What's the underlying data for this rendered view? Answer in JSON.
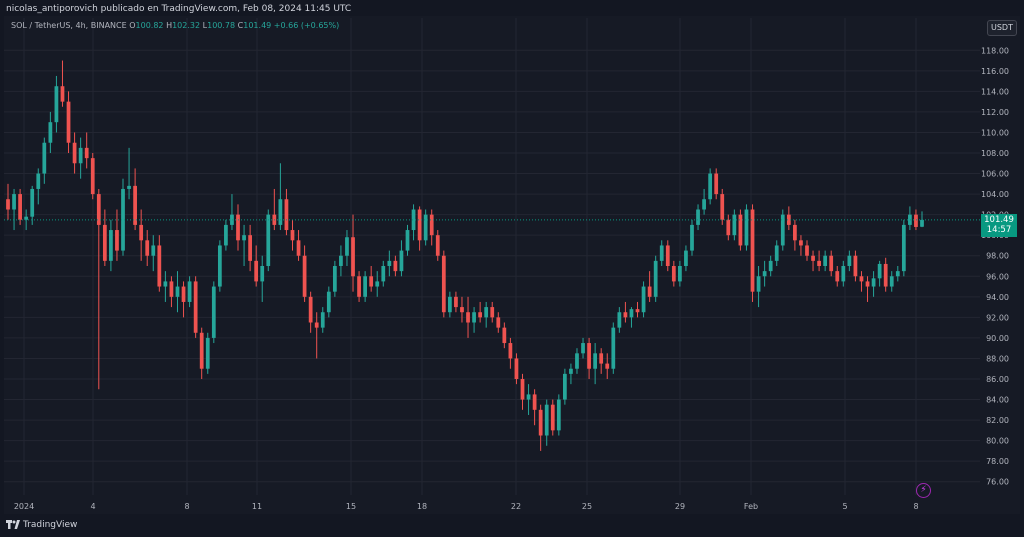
{
  "header": {
    "publisher_line": "nicolas_antiporovich publicado en TradingView.com, Feb 08, 2024 11:45 UTC"
  },
  "legend": {
    "symbol": "SOL / TetherUS, 4h, BINANCE",
    "open_label": "O",
    "open": "100.82",
    "high_label": "H",
    "high": "102.32",
    "low_label": "L",
    "low": "100.78",
    "close_label": "C",
    "close": "101.49",
    "change": "+0.66 (+0.65%)"
  },
  "currency_button": "USDT",
  "price_tag": {
    "price": "101.49",
    "countdown": "14:57"
  },
  "footer": {
    "brand": "TradingView"
  },
  "icons": {
    "flash": "flash-icon",
    "logo": "tradingview-logo-icon"
  },
  "colors": {
    "up": "#26a69a",
    "down": "#ef5350",
    "background": "#161a25",
    "grid": "#232632",
    "price_line": "#089981",
    "flash": "#e040fb"
  },
  "chart_data": {
    "type": "candlestick",
    "symbol": "SOL / TetherUS",
    "interval": "4h",
    "exchange": "BINANCE",
    "ylim": [
      75,
      119
    ],
    "y_ticks": [
      76,
      78,
      80,
      82,
      84,
      86,
      88,
      90,
      92,
      94,
      96,
      98,
      100,
      102,
      104,
      106,
      108,
      110,
      112,
      114,
      116,
      118
    ],
    "x_ticks": [
      "2024",
      "4",
      "8",
      "11",
      "15",
      "18",
      "22",
      "25",
      "29",
      "Feb",
      "5",
      "8"
    ],
    "last_price": 101.49,
    "candles": [
      {
        "o": 103.5,
        "h": 105.0,
        "l": 101.5,
        "c": 102.5
      },
      {
        "o": 102.5,
        "h": 104.5,
        "l": 100.5,
        "c": 104.0
      },
      {
        "o": 104.0,
        "h": 104.5,
        "l": 101.0,
        "c": 101.5
      },
      {
        "o": 101.5,
        "h": 102.5,
        "l": 100.5,
        "c": 101.8
      },
      {
        "o": 101.8,
        "h": 104.8,
        "l": 101.0,
        "c": 104.5
      },
      {
        "o": 104.5,
        "h": 106.5,
        "l": 103.0,
        "c": 106.0
      },
      {
        "o": 106.0,
        "h": 109.5,
        "l": 105.0,
        "c": 109.0
      },
      {
        "o": 109.0,
        "h": 112.0,
        "l": 108.0,
        "c": 111.0
      },
      {
        "o": 111.0,
        "h": 115.5,
        "l": 110.0,
        "c": 114.5
      },
      {
        "o": 114.5,
        "h": 117.0,
        "l": 112.5,
        "c": 113.0
      },
      {
        "o": 113.0,
        "h": 114.0,
        "l": 108.0,
        "c": 109.0
      },
      {
        "o": 109.0,
        "h": 110.0,
        "l": 106.0,
        "c": 107.0
      },
      {
        "o": 107.0,
        "h": 109.5,
        "l": 105.5,
        "c": 108.5
      },
      {
        "o": 108.5,
        "h": 110.0,
        "l": 106.5,
        "c": 107.5
      },
      {
        "o": 107.5,
        "h": 108.0,
        "l": 103.5,
        "c": 104.0
      },
      {
        "o": 104.0,
        "h": 104.5,
        "l": 85.0,
        "c": 101.0
      },
      {
        "o": 101.0,
        "h": 102.5,
        "l": 97.0,
        "c": 97.5
      },
      {
        "o": 97.5,
        "h": 101.5,
        "l": 96.5,
        "c": 100.5
      },
      {
        "o": 100.5,
        "h": 102.5,
        "l": 97.5,
        "c": 98.5
      },
      {
        "o": 98.5,
        "h": 105.5,
        "l": 98.0,
        "c": 104.5
      },
      {
        "o": 104.5,
        "h": 108.5,
        "l": 103.5,
        "c": 104.8
      },
      {
        "o": 104.8,
        "h": 106.5,
        "l": 100.5,
        "c": 101.0
      },
      {
        "o": 101.0,
        "h": 102.5,
        "l": 97.5,
        "c": 99.5
      },
      {
        "o": 99.5,
        "h": 100.5,
        "l": 97.0,
        "c": 98.0
      },
      {
        "o": 98.0,
        "h": 100.0,
        "l": 96.5,
        "c": 99.0
      },
      {
        "o": 99.0,
        "h": 100.0,
        "l": 94.5,
        "c": 95.0
      },
      {
        "o": 95.0,
        "h": 96.5,
        "l": 93.5,
        "c": 95.5
      },
      {
        "o": 95.5,
        "h": 96.0,
        "l": 93.0,
        "c": 94.0
      },
      {
        "o": 94.0,
        "h": 96.5,
        "l": 92.5,
        "c": 95.0
      },
      {
        "o": 95.0,
        "h": 95.5,
        "l": 92.0,
        "c": 93.5
      },
      {
        "o": 93.5,
        "h": 96.0,
        "l": 93.0,
        "c": 95.5
      },
      {
        "o": 95.5,
        "h": 96.0,
        "l": 90.0,
        "c": 90.5
      },
      {
        "o": 90.5,
        "h": 91.0,
        "l": 86.0,
        "c": 87.0
      },
      {
        "o": 87.0,
        "h": 90.5,
        "l": 86.5,
        "c": 90.0
      },
      {
        "o": 90.0,
        "h": 95.5,
        "l": 89.5,
        "c": 95.0
      },
      {
        "o": 95.0,
        "h": 99.5,
        "l": 94.5,
        "c": 99.0
      },
      {
        "o": 99.0,
        "h": 101.5,
        "l": 98.5,
        "c": 101.0
      },
      {
        "o": 101.0,
        "h": 104.0,
        "l": 100.5,
        "c": 102.0
      },
      {
        "o": 102.0,
        "h": 103.0,
        "l": 98.5,
        "c": 99.5
      },
      {
        "o": 99.5,
        "h": 101.0,
        "l": 97.0,
        "c": 100.0
      },
      {
        "o": 100.0,
        "h": 101.0,
        "l": 96.5,
        "c": 97.5
      },
      {
        "o": 97.5,
        "h": 99.0,
        "l": 95.0,
        "c": 95.5
      },
      {
        "o": 95.5,
        "h": 98.0,
        "l": 93.5,
        "c": 97.0
      },
      {
        "o": 97.0,
        "h": 102.5,
        "l": 96.5,
        "c": 102.0
      },
      {
        "o": 102.0,
        "h": 104.5,
        "l": 100.5,
        "c": 101.0
      },
      {
        "o": 101.0,
        "h": 107.0,
        "l": 100.5,
        "c": 103.5
      },
      {
        "o": 103.5,
        "h": 104.5,
        "l": 100.0,
        "c": 100.5
      },
      {
        "o": 100.5,
        "h": 101.5,
        "l": 98.5,
        "c": 99.5
      },
      {
        "o": 99.5,
        "h": 100.5,
        "l": 97.5,
        "c": 98.0
      },
      {
        "o": 98.0,
        "h": 99.0,
        "l": 93.5,
        "c": 94.0
      },
      {
        "o": 94.0,
        "h": 94.5,
        "l": 90.5,
        "c": 91.5
      },
      {
        "o": 91.5,
        "h": 92.5,
        "l": 88.0,
        "c": 91.0
      },
      {
        "o": 91.0,
        "h": 93.0,
        "l": 90.5,
        "c": 92.5
      },
      {
        "o": 92.5,
        "h": 95.0,
        "l": 92.0,
        "c": 94.5
      },
      {
        "o": 94.5,
        "h": 97.5,
        "l": 94.0,
        "c": 97.0
      },
      {
        "o": 97.0,
        "h": 99.0,
        "l": 96.0,
        "c": 98.0
      },
      {
        "o": 98.0,
        "h": 100.5,
        "l": 97.0,
        "c": 99.8
      },
      {
        "o": 99.8,
        "h": 102.0,
        "l": 94.5,
        "c": 96.0
      },
      {
        "o": 96.0,
        "h": 96.5,
        "l": 93.5,
        "c": 94.0
      },
      {
        "o": 94.0,
        "h": 96.5,
        "l": 93.5,
        "c": 96.0
      },
      {
        "o": 96.0,
        "h": 97.0,
        "l": 94.5,
        "c": 95.0
      },
      {
        "o": 95.0,
        "h": 96.5,
        "l": 94.0,
        "c": 95.5
      },
      {
        "o": 95.5,
        "h": 97.5,
        "l": 95.0,
        "c": 97.0
      },
      {
        "o": 97.0,
        "h": 98.5,
        "l": 96.0,
        "c": 97.5
      },
      {
        "o": 97.5,
        "h": 98.0,
        "l": 96.0,
        "c": 96.5
      },
      {
        "o": 96.5,
        "h": 99.5,
        "l": 96.0,
        "c": 98.5
      },
      {
        "o": 98.5,
        "h": 101.0,
        "l": 98.0,
        "c": 100.5
      },
      {
        "o": 100.5,
        "h": 103.0,
        "l": 99.5,
        "c": 102.5
      },
      {
        "o": 102.5,
        "h": 102.8,
        "l": 98.5,
        "c": 99.5
      },
      {
        "o": 99.5,
        "h": 102.5,
        "l": 99.0,
        "c": 102.0
      },
      {
        "o": 102.0,
        "h": 102.5,
        "l": 99.0,
        "c": 100.0
      },
      {
        "o": 100.0,
        "h": 100.5,
        "l": 97.5,
        "c": 98.0
      },
      {
        "o": 98.0,
        "h": 98.5,
        "l": 92.0,
        "c": 92.5
      },
      {
        "o": 92.5,
        "h": 94.5,
        "l": 92.0,
        "c": 94.0
      },
      {
        "o": 94.0,
        "h": 94.5,
        "l": 92.5,
        "c": 93.0
      },
      {
        "o": 93.0,
        "h": 94.0,
        "l": 91.5,
        "c": 92.5
      },
      {
        "o": 92.5,
        "h": 94.0,
        "l": 90.0,
        "c": 91.5
      },
      {
        "o": 91.5,
        "h": 93.0,
        "l": 90.5,
        "c": 92.5
      },
      {
        "o": 92.5,
        "h": 93.5,
        "l": 91.5,
        "c": 92.0
      },
      {
        "o": 92.0,
        "h": 93.5,
        "l": 91.0,
        "c": 93.0
      },
      {
        "o": 93.0,
        "h": 93.5,
        "l": 91.5,
        "c": 92.0
      },
      {
        "o": 92.0,
        "h": 92.5,
        "l": 90.5,
        "c": 91.0
      },
      {
        "o": 91.0,
        "h": 91.5,
        "l": 89.0,
        "c": 89.5
      },
      {
        "o": 89.5,
        "h": 90.0,
        "l": 87.0,
        "c": 88.0
      },
      {
        "o": 88.0,
        "h": 88.5,
        "l": 85.5,
        "c": 86.0
      },
      {
        "o": 86.0,
        "h": 86.5,
        "l": 83.0,
        "c": 84.0
      },
      {
        "o": 84.0,
        "h": 85.5,
        "l": 82.5,
        "c": 84.5
      },
      {
        "o": 84.5,
        "h": 85.0,
        "l": 81.5,
        "c": 83.0
      },
      {
        "o": 83.0,
        "h": 83.5,
        "l": 79.0,
        "c": 80.5
      },
      {
        "o": 80.5,
        "h": 84.0,
        "l": 79.5,
        "c": 83.5
      },
      {
        "o": 83.5,
        "h": 84.0,
        "l": 80.5,
        "c": 81.0
      },
      {
        "o": 81.0,
        "h": 84.5,
        "l": 80.5,
        "c": 84.0
      },
      {
        "o": 84.0,
        "h": 87.0,
        "l": 83.5,
        "c": 86.5
      },
      {
        "o": 86.5,
        "h": 87.5,
        "l": 85.5,
        "c": 87.0
      },
      {
        "o": 87.0,
        "h": 89.0,
        "l": 86.5,
        "c": 88.5
      },
      {
        "o": 88.5,
        "h": 90.0,
        "l": 88.0,
        "c": 89.5
      },
      {
        "o": 89.5,
        "h": 90.0,
        "l": 86.0,
        "c": 87.0
      },
      {
        "o": 87.0,
        "h": 89.5,
        "l": 85.5,
        "c": 88.5
      },
      {
        "o": 88.5,
        "h": 89.0,
        "l": 86.5,
        "c": 87.5
      },
      {
        "o": 87.5,
        "h": 88.5,
        "l": 86.0,
        "c": 87.0
      },
      {
        "o": 87.0,
        "h": 91.5,
        "l": 86.5,
        "c": 91.0
      },
      {
        "o": 91.0,
        "h": 93.0,
        "l": 90.5,
        "c": 92.5
      },
      {
        "o": 92.5,
        "h": 93.5,
        "l": 91.5,
        "c": 92.0
      },
      {
        "o": 92.0,
        "h": 93.0,
        "l": 91.0,
        "c": 92.8
      },
      {
        "o": 92.8,
        "h": 93.5,
        "l": 92.0,
        "c": 92.5
      },
      {
        "o": 92.5,
        "h": 95.5,
        "l": 92.0,
        "c": 95.0
      },
      {
        "o": 95.0,
        "h": 96.5,
        "l": 93.5,
        "c": 94.0
      },
      {
        "o": 94.0,
        "h": 98.0,
        "l": 93.5,
        "c": 97.5
      },
      {
        "o": 97.5,
        "h": 99.5,
        "l": 97.0,
        "c": 99.0
      },
      {
        "o": 99.0,
        "h": 99.5,
        "l": 96.5,
        "c": 97.0
      },
      {
        "o": 97.0,
        "h": 97.5,
        "l": 95.0,
        "c": 95.5
      },
      {
        "o": 95.5,
        "h": 97.5,
        "l": 95.0,
        "c": 97.0
      },
      {
        "o": 97.0,
        "h": 99.0,
        "l": 96.5,
        "c": 98.5
      },
      {
        "o": 98.5,
        "h": 101.5,
        "l": 98.0,
        "c": 101.0
      },
      {
        "o": 101.0,
        "h": 103.0,
        "l": 100.5,
        "c": 102.5
      },
      {
        "o": 102.5,
        "h": 104.5,
        "l": 102.0,
        "c": 103.5
      },
      {
        "o": 103.5,
        "h": 106.5,
        "l": 103.0,
        "c": 106.0
      },
      {
        "o": 106.0,
        "h": 106.5,
        "l": 103.5,
        "c": 104.0
      },
      {
        "o": 104.0,
        "h": 104.5,
        "l": 101.0,
        "c": 101.5
      },
      {
        "o": 101.5,
        "h": 102.0,
        "l": 99.5,
        "c": 100.0
      },
      {
        "o": 100.0,
        "h": 102.5,
        "l": 99.5,
        "c": 102.0
      },
      {
        "o": 102.0,
        "h": 102.5,
        "l": 98.5,
        "c": 99.0
      },
      {
        "o": 99.0,
        "h": 103.0,
        "l": 98.5,
        "c": 102.5
      },
      {
        "o": 102.5,
        "h": 103.0,
        "l": 93.5,
        "c": 94.5
      },
      {
        "o": 94.5,
        "h": 97.0,
        "l": 93.0,
        "c": 96.0
      },
      {
        "o": 96.0,
        "h": 97.5,
        "l": 95.0,
        "c": 96.5
      },
      {
        "o": 96.5,
        "h": 98.0,
        "l": 96.0,
        "c": 97.5
      },
      {
        "o": 97.5,
        "h": 99.5,
        "l": 97.0,
        "c": 99.0
      },
      {
        "o": 99.0,
        "h": 102.5,
        "l": 98.5,
        "c": 102.0
      },
      {
        "o": 102.0,
        "h": 102.8,
        "l": 100.5,
        "c": 101.0
      },
      {
        "o": 101.0,
        "h": 101.5,
        "l": 98.5,
        "c": 99.5
      },
      {
        "o": 99.5,
        "h": 100.0,
        "l": 98.0,
        "c": 99.0
      },
      {
        "o": 99.0,
        "h": 99.5,
        "l": 97.5,
        "c": 98.0
      },
      {
        "o": 98.0,
        "h": 98.5,
        "l": 96.5,
        "c": 97.5
      },
      {
        "o": 97.5,
        "h": 98.5,
        "l": 96.5,
        "c": 97.0
      },
      {
        "o": 97.0,
        "h": 98.5,
        "l": 96.5,
        "c": 98.0
      },
      {
        "o": 98.0,
        "h": 98.5,
        "l": 96.0,
        "c": 96.5
      },
      {
        "o": 96.5,
        "h": 97.0,
        "l": 95.0,
        "c": 95.5
      },
      {
        "o": 95.5,
        "h": 97.5,
        "l": 95.0,
        "c": 97.0
      },
      {
        "o": 97.0,
        "h": 98.5,
        "l": 96.5,
        "c": 98.0
      },
      {
        "o": 98.0,
        "h": 98.5,
        "l": 95.5,
        "c": 96.0
      },
      {
        "o": 96.0,
        "h": 96.5,
        "l": 94.5,
        "c": 95.5
      },
      {
        "o": 95.5,
        "h": 96.0,
        "l": 93.5,
        "c": 95.0
      },
      {
        "o": 95.0,
        "h": 96.5,
        "l": 94.0,
        "c": 95.8
      },
      {
        "o": 95.8,
        "h": 97.5,
        "l": 95.0,
        "c": 97.2
      },
      {
        "o": 97.2,
        "h": 97.8,
        "l": 94.5,
        "c": 95.0
      },
      {
        "o": 95.0,
        "h": 96.5,
        "l": 94.5,
        "c": 96.0
      },
      {
        "o": 96.0,
        "h": 97.0,
        "l": 95.5,
        "c": 96.5
      },
      {
        "o": 96.5,
        "h": 101.5,
        "l": 96.0,
        "c": 101.0
      },
      {
        "o": 101.0,
        "h": 102.8,
        "l": 100.5,
        "c": 102.0
      },
      {
        "o": 102.0,
        "h": 102.5,
        "l": 100.5,
        "c": 100.8
      },
      {
        "o": 100.82,
        "h": 102.32,
        "l": 100.78,
        "c": 101.49
      }
    ]
  }
}
